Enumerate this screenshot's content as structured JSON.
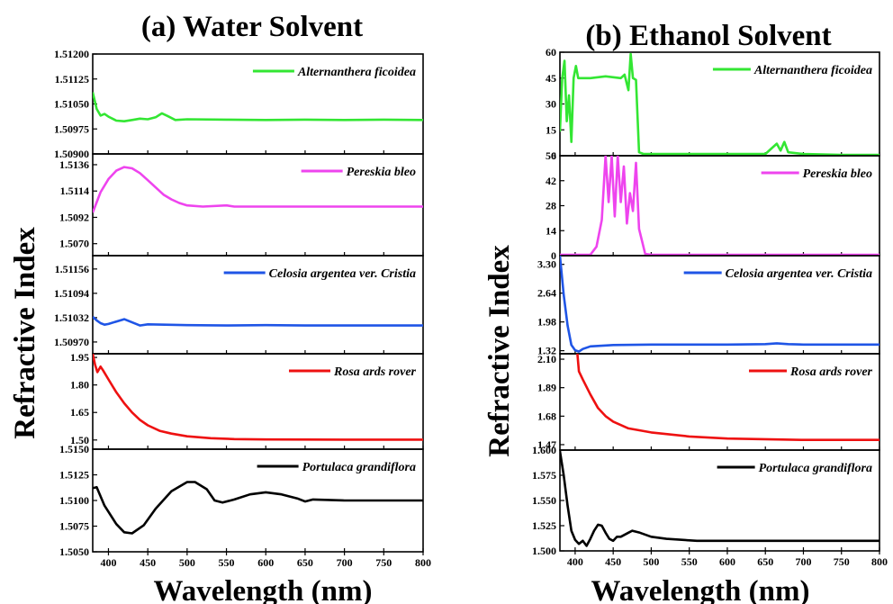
{
  "chart_data": [
    {
      "type": "line",
      "title": "(a) Water Solvent",
      "ylabel": "Refractive Index",
      "xlabel": "Wavelength (nm)",
      "xlim": [
        380,
        800
      ],
      "xticks": [
        "400",
        "450",
        "500",
        "550",
        "600",
        "650",
        "700",
        "750",
        "800"
      ],
      "panels": [
        {
          "name": "Alternanthera ficoidea",
          "color": "#33e633",
          "ylim": [
            1.509,
            1.512
          ],
          "yticks": [
            "1.51200",
            "1.51125",
            "1.51050",
            "1.50975",
            "1.50900"
          ],
          "points": [
            [
              380,
              1.51085
            ],
            [
              385,
              1.51035
            ],
            [
              390,
              1.51015
            ],
            [
              395,
              1.5102
            ],
            [
              400,
              1.51012
            ],
            [
              410,
              1.51
            ],
            [
              420,
              1.50998
            ],
            [
              430,
              1.51002
            ],
            [
              440,
              1.51006
            ],
            [
              450,
              1.51004
            ],
            [
              460,
              1.5101
            ],
            [
              468,
              1.51022
            ],
            [
              475,
              1.51014
            ],
            [
              485,
              1.51002
            ],
            [
              500,
              1.51004
            ],
            [
              550,
              1.51003
            ],
            [
              600,
              1.51002
            ],
            [
              650,
              1.51003
            ],
            [
              700,
              1.51002
            ],
            [
              750,
              1.51003
            ],
            [
              800,
              1.51002
            ]
          ]
        },
        {
          "name": "Pereskia bleo",
          "color": "#ee44ee",
          "ylim": [
            1.506,
            1.5145
          ],
          "yticks": [
            "1.5136",
            "1.5114",
            "1.5092",
            "1.5070"
          ],
          "points": [
            [
              380,
              1.5096
            ],
            [
              390,
              1.5113
            ],
            [
              400,
              1.5124
            ],
            [
              410,
              1.5131
            ],
            [
              420,
              1.5134
            ],
            [
              430,
              1.5133
            ],
            [
              440,
              1.5129
            ],
            [
              450,
              1.5123
            ],
            [
              460,
              1.5117
            ],
            [
              470,
              1.5111
            ],
            [
              480,
              1.5107
            ],
            [
              490,
              1.5104
            ],
            [
              500,
              1.5102
            ],
            [
              520,
              1.5101
            ],
            [
              550,
              1.5102
            ],
            [
              560,
              1.5101
            ],
            [
              600,
              1.5101
            ],
            [
              700,
              1.5101
            ],
            [
              800,
              1.5101
            ]
          ]
        },
        {
          "name": "Celosia argentea ver. Cristia",
          "color": "#1f55e6",
          "ylim": [
            1.5094,
            1.5119
          ],
          "yticks": [
            "1.51156",
            "1.51094",
            "1.51032",
            "1.50970"
          ],
          "points": [
            [
              380,
              1.51034
            ],
            [
              385,
              1.51025
            ],
            [
              390,
              1.51018
            ],
            [
              395,
              1.51014
            ],
            [
              400,
              1.51016
            ],
            [
              410,
              1.51022
            ],
            [
              420,
              1.51028
            ],
            [
              430,
              1.5102
            ],
            [
              440,
              1.51012
            ],
            [
              450,
              1.51015
            ],
            [
              500,
              1.51013
            ],
            [
              550,
              1.51012
            ],
            [
              600,
              1.51013
            ],
            [
              650,
              1.51012
            ],
            [
              700,
              1.51012
            ],
            [
              750,
              1.51012
            ],
            [
              800,
              1.51012
            ]
          ]
        },
        {
          "name": "Rosa ards rover",
          "color": "#ee1111",
          "ylim": [
            1.45,
            1.97
          ],
          "yticks": [
            "1.95",
            "1.80",
            "1.65",
            "1.50"
          ],
          "points": [
            [
              380,
              1.97
            ],
            [
              383,
              1.91
            ],
            [
              386,
              1.87
            ],
            [
              390,
              1.9
            ],
            [
              393,
              1.88
            ],
            [
              400,
              1.83
            ],
            [
              410,
              1.76
            ],
            [
              420,
              1.7
            ],
            [
              430,
              1.65
            ],
            [
              440,
              1.61
            ],
            [
              450,
              1.58
            ],
            [
              465,
              1.55
            ],
            [
              480,
              1.535
            ],
            [
              500,
              1.52
            ],
            [
              530,
              1.51
            ],
            [
              560,
              1.505
            ],
            [
              600,
              1.503
            ],
            [
              700,
              1.502
            ],
            [
              800,
              1.502
            ]
          ]
        },
        {
          "name": "Portulaca grandiflora",
          "color": "#000000",
          "ylim": [
            1.505,
            1.515
          ],
          "yticks": [
            "1.5150",
            "1.5125",
            "1.5100",
            "1.5075",
            "1.5050"
          ],
          "points": [
            [
              380,
              1.5112
            ],
            [
              385,
              1.5113
            ],
            [
              395,
              1.5095
            ],
            [
              410,
              1.5077
            ],
            [
              420,
              1.5069
            ],
            [
              430,
              1.5068
            ],
            [
              445,
              1.5076
            ],
            [
              460,
              1.5092
            ],
            [
              480,
              1.5109
            ],
            [
              500,
              1.5118
            ],
            [
              510,
              1.5118
            ],
            [
              525,
              1.5111
            ],
            [
              535,
              1.51
            ],
            [
              545,
              1.5098
            ],
            [
              560,
              1.5101
            ],
            [
              580,
              1.5106
            ],
            [
              600,
              1.5108
            ],
            [
              620,
              1.5106
            ],
            [
              640,
              1.5102
            ],
            [
              650,
              1.5099
            ],
            [
              660,
              1.5101
            ],
            [
              700,
              1.51
            ],
            [
              750,
              1.51
            ],
            [
              800,
              1.51
            ]
          ]
        }
      ]
    },
    {
      "type": "line",
      "title": "(b) Ethanol Solvent",
      "ylabel": "Refractive Index",
      "xlabel": "Wavelength (nm)",
      "xlim": [
        380,
        800
      ],
      "xticks": [
        "400",
        "450",
        "500",
        "550",
        "600",
        "650",
        "700",
        "750",
        "800"
      ],
      "panels": [
        {
          "name": "Alternanthera ficoidea",
          "color": "#33e633",
          "ylim": [
            0,
            60
          ],
          "yticks": [
            "60",
            "45",
            "30",
            "15",
            "0"
          ],
          "points": [
            [
              380,
              14
            ],
            [
              383,
              45
            ],
            [
              386,
              55
            ],
            [
              389,
              20
            ],
            [
              392,
              35
            ],
            [
              395,
              8
            ],
            [
              398,
              45
            ],
            [
              401,
              52
            ],
            [
              404,
              45
            ],
            [
              420,
              45
            ],
            [
              440,
              46
            ],
            [
              460,
              45
            ],
            [
              465,
              47
            ],
            [
              470,
              38
            ],
            [
              473,
              59
            ],
            [
              476,
              45
            ],
            [
              480,
              44
            ],
            [
              484,
              2
            ],
            [
              490,
              1
            ],
            [
              550,
              1
            ],
            [
              600,
              1
            ],
            [
              650,
              1
            ],
            [
              660,
              5
            ],
            [
              665,
              7
            ],
            [
              670,
              3
            ],
            [
              675,
              8
            ],
            [
              680,
              2
            ],
            [
              700,
              1
            ],
            [
              750,
              0.5
            ],
            [
              800,
              0.5
            ]
          ]
        },
        {
          "name": "Pereskia bleo",
          "color": "#ee44ee",
          "ylim": [
            0,
            56
          ],
          "yticks": [
            "56",
            "42",
            "28",
            "14",
            "0"
          ],
          "points": [
            [
              380,
              0.5
            ],
            [
              420,
              0.5
            ],
            [
              428,
              5
            ],
            [
              435,
              20
            ],
            [
              440,
              56
            ],
            [
              444,
              30
            ],
            [
              448,
              56
            ],
            [
              452,
              22
            ],
            [
              456,
              56
            ],
            [
              460,
              30
            ],
            [
              464,
              50
            ],
            [
              468,
              18
            ],
            [
              472,
              35
            ],
            [
              476,
              25
            ],
            [
              480,
              52
            ],
            [
              484,
              15
            ],
            [
              488,
              8
            ],
            [
              492,
              1
            ],
            [
              500,
              0.5
            ],
            [
              600,
              0.5
            ],
            [
              700,
              0.5
            ],
            [
              800,
              0.5
            ]
          ]
        },
        {
          "name": "Celosia argentea ver. Cristia",
          "color": "#1f55e6",
          "ylim": [
            1.25,
            3.5
          ],
          "yticks": [
            "3.30",
            "2.64",
            "1.98",
            "1.32"
          ],
          "points": [
            [
              380,
              3.5
            ],
            [
              385,
              2.6
            ],
            [
              390,
              1.9
            ],
            [
              395,
              1.45
            ],
            [
              400,
              1.33
            ],
            [
              405,
              1.3
            ],
            [
              410,
              1.36
            ],
            [
              420,
              1.42
            ],
            [
              450,
              1.45
            ],
            [
              500,
              1.46
            ],
            [
              600,
              1.46
            ],
            [
              650,
              1.47
            ],
            [
              665,
              1.49
            ],
            [
              680,
              1.47
            ],
            [
              700,
              1.46
            ],
            [
              800,
              1.46
            ]
          ]
        },
        {
          "name": "Rosa ards rover",
          "color": "#ee1111",
          "ylim": [
            1.43,
            2.14
          ],
          "yticks": [
            "2.10",
            "1.89",
            "1.68",
            "1.47"
          ],
          "points": [
            [
              403,
              2.14
            ],
            [
              405,
              2.01
            ],
            [
              410,
              1.95
            ],
            [
              420,
              1.84
            ],
            [
              430,
              1.74
            ],
            [
              440,
              1.68
            ],
            [
              450,
              1.64
            ],
            [
              470,
              1.59
            ],
            [
              500,
              1.56
            ],
            [
              550,
              1.53
            ],
            [
              600,
              1.515
            ],
            [
              700,
              1.505
            ],
            [
              800,
              1.505
            ]
          ]
        },
        {
          "name": "Portulaca grandiflora",
          "color": "#000000",
          "ylim": [
            1.5,
            1.6
          ],
          "yticks": [
            "1.600",
            "1.575",
            "1.550",
            "1.525",
            "1.500"
          ],
          "points": [
            [
              380,
              1.599
            ],
            [
              385,
              1.575
            ],
            [
              390,
              1.545
            ],
            [
              395,
              1.52
            ],
            [
              400,
              1.511
            ],
            [
              405,
              1.507
            ],
            [
              410,
              1.51
            ],
            [
              415,
              1.505
            ],
            [
              420,
              1.512
            ],
            [
              425,
              1.52
            ],
            [
              430,
              1.526
            ],
            [
              435,
              1.525
            ],
            [
              440,
              1.518
            ],
            [
              445,
              1.512
            ],
            [
              450,
              1.51
            ],
            [
              455,
              1.514
            ],
            [
              460,
              1.514
            ],
            [
              470,
              1.518
            ],
            [
              475,
              1.52
            ],
            [
              485,
              1.518
            ],
            [
              500,
              1.514
            ],
            [
              520,
              1.512
            ],
            [
              560,
              1.51
            ],
            [
              600,
              1.51
            ],
            [
              800,
              1.51
            ]
          ]
        }
      ]
    }
  ]
}
